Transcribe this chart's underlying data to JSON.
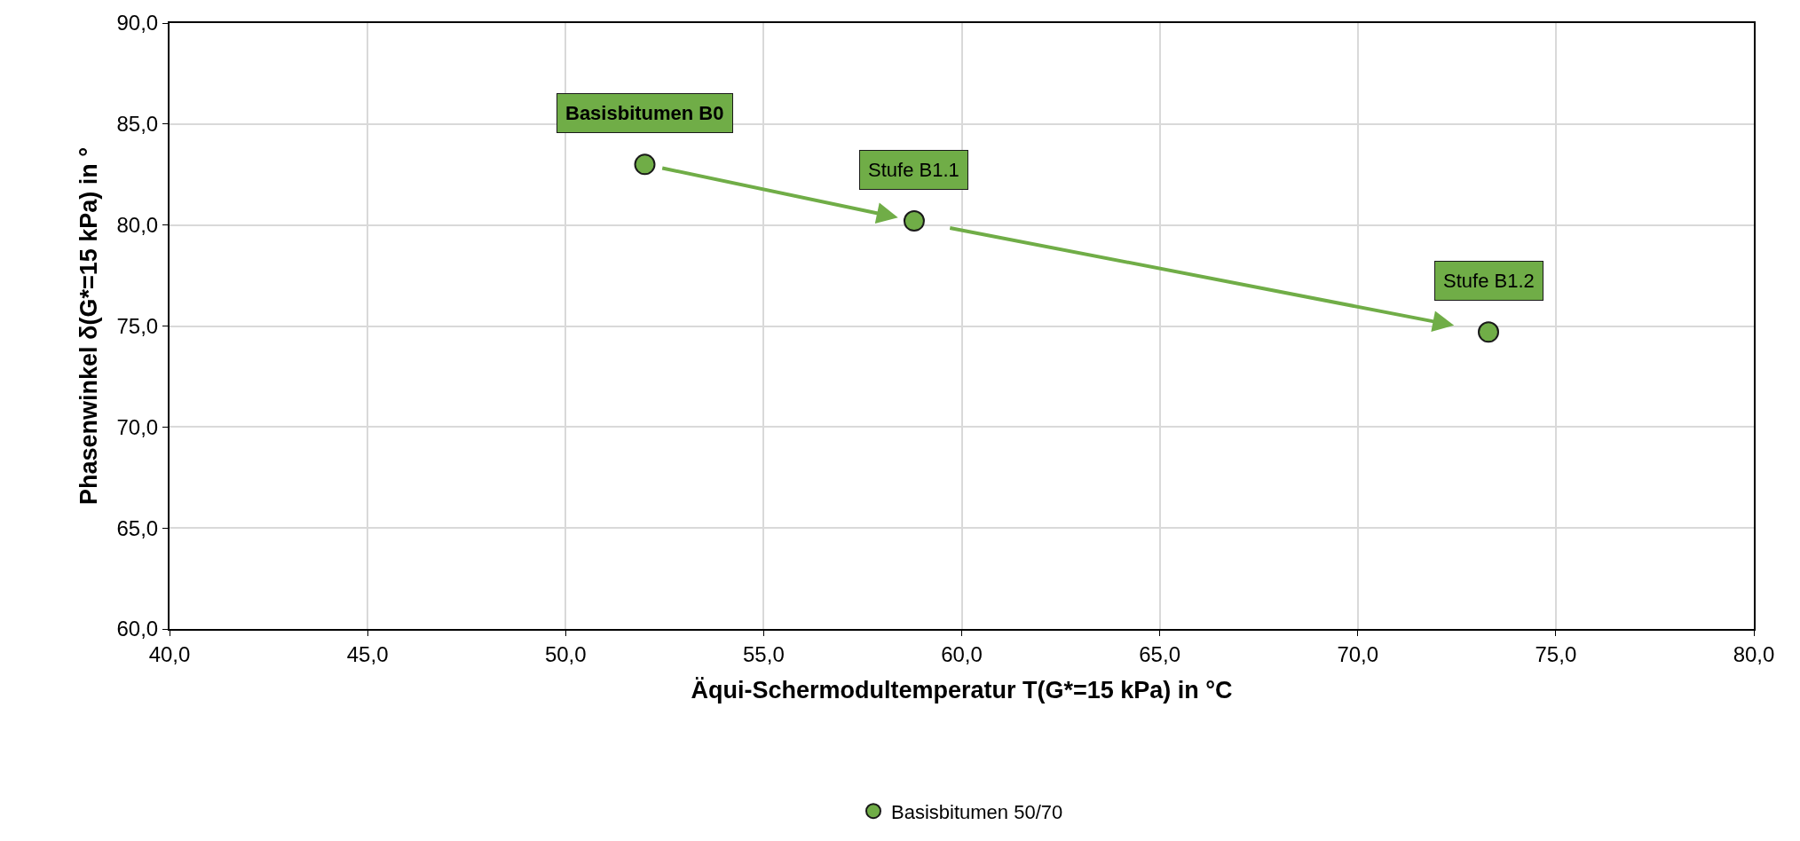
{
  "chart_data": {
    "type": "scatter",
    "xlabel": "Äqui-Schermodultemperatur T(G*=15 kPa) in °C",
    "ylabel": "Phasenwinkel δ(G*=15 kPa) in °",
    "x": [
      52.0,
      58.8,
      73.3
    ],
    "series": [
      {
        "name": "Basisbitumen 50/70",
        "color": "#70ad47",
        "values": [
          83.0,
          80.2,
          74.7
        ]
      }
    ],
    "annotations": [
      {
        "text": "Basisbitumen B0",
        "x": 52.0,
        "y": 83.0
      },
      {
        "text": "Stufe B1.1",
        "x": 58.8,
        "y": 80.2
      },
      {
        "text": "Stufe B1.2",
        "x": 73.3,
        "y": 74.7
      }
    ],
    "xlim": [
      40,
      80
    ],
    "ylim": [
      60,
      90
    ],
    "xticks": [
      {
        "value": 40,
        "label": "40,0"
      },
      {
        "value": 45,
        "label": "45,0"
      },
      {
        "value": 50,
        "label": "50,0"
      },
      {
        "value": 55,
        "label": "55,0"
      },
      {
        "value": 60,
        "label": "60,0"
      },
      {
        "value": 65,
        "label": "65,0"
      },
      {
        "value": 70,
        "label": "70,0"
      },
      {
        "value": 75,
        "label": "75,0"
      },
      {
        "value": 80,
        "label": "80,0"
      }
    ],
    "yticks": [
      {
        "value": 60,
        "label": "60,0"
      },
      {
        "value": 65,
        "label": "65,0"
      },
      {
        "value": 70,
        "label": "70,0"
      },
      {
        "value": 75,
        "label": "75,0"
      },
      {
        "value": 80,
        "label": "80,0"
      },
      {
        "value": 85,
        "label": "85,0"
      },
      {
        "value": 90,
        "label": "90,0"
      }
    ],
    "grid": true,
    "legend": "bottom",
    "marker": "circle"
  }
}
